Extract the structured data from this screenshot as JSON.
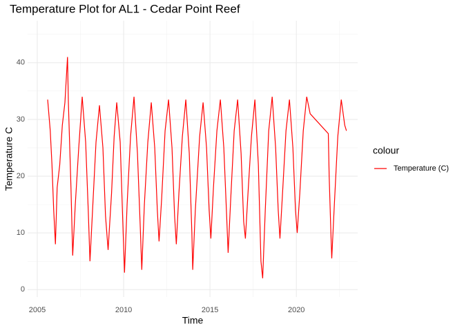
{
  "chart_data": {
    "type": "line",
    "title": "Temperature Plot for AL1 - Cedar Point Reef",
    "x_label": "Time",
    "y_label": "Temperature C",
    "legend_title": "colour",
    "legend_position": "right",
    "grid": true,
    "xlim": [
      2004.44,
      2023.55
    ],
    "xticks": [
      2005,
      2010,
      2015,
      2020
    ],
    "ylim": [
      -1.3,
      47.4
    ],
    "yticks": [
      0,
      10,
      20,
      30,
      40
    ],
    "x": [
      2005.6,
      2005.75,
      2005.85,
      2005.95,
      2006.05,
      2006.15,
      2006.3,
      2006.45,
      2006.6,
      2006.75,
      2006.8,
      2006.95,
      2007.05,
      2007.2,
      2007.4,
      2007.6,
      2007.8,
      2007.95,
      2008.05,
      2008.2,
      2008.4,
      2008.6,
      2008.8,
      2008.95,
      2009.1,
      2009.3,
      2009.45,
      2009.6,
      2009.8,
      2009.95,
      2010.05,
      2010.2,
      2010.4,
      2010.6,
      2010.8,
      2010.95,
      2011.05,
      2011.2,
      2011.4,
      2011.6,
      2011.8,
      2011.95,
      2012.05,
      2012.2,
      2012.4,
      2012.6,
      2012.8,
      2012.95,
      2013.05,
      2013.2,
      2013.4,
      2013.6,
      2013.8,
      2013.95,
      2014.0,
      2014.15,
      2014.4,
      2014.6,
      2014.8,
      2014.95,
      2015.05,
      2015.2,
      2015.4,
      2015.6,
      2015.8,
      2015.95,
      2016.05,
      2016.2,
      2016.4,
      2016.6,
      2016.8,
      2016.95,
      2017.05,
      2017.2,
      2017.4,
      2017.6,
      2017.8,
      2017.95,
      2018.05,
      2018.2,
      2018.4,
      2018.6,
      2018.8,
      2018.95,
      2019.05,
      2019.2,
      2019.4,
      2019.6,
      2019.8,
      2019.95,
      2020.05,
      2020.2,
      2020.4,
      2020.6,
      2020.8,
      2021.85,
      2021.9,
      2022.0,
      2022.05,
      2022.2,
      2022.4,
      2022.6,
      2022.8,
      2022.9
    ],
    "series": [
      {
        "name": "Temperature (C)",
        "color": "#ff0000",
        "values": [
          33.5,
          28,
          22,
          14,
          8,
          18,
          22,
          29,
          33,
          41,
          33,
          18,
          6,
          15,
          25,
          34,
          26,
          14,
          5,
          14,
          26,
          32.5,
          25,
          13,
          7,
          17,
          27,
          33,
          26,
          12,
          3,
          15,
          27,
          34,
          24,
          12,
          3.5,
          15,
          26,
          33,
          25,
          14,
          8.5,
          16,
          28,
          33.5,
          25,
          13,
          8,
          17,
          27,
          33.5,
          24,
          10,
          3.5,
          14,
          27,
          33,
          25,
          14,
          9,
          18,
          28,
          33.5,
          25,
          14,
          6.5,
          16,
          28,
          33.5,
          24,
          12,
          9,
          17,
          27,
          33.5,
          22,
          5,
          2,
          14,
          28,
          34,
          25,
          14,
          9,
          17,
          28,
          33.5,
          25,
          14,
          10,
          17,
          28,
          34,
          31,
          27.5,
          20,
          10,
          5.5,
          15,
          27,
          33.5,
          29,
          28
        ]
      }
    ]
  }
}
